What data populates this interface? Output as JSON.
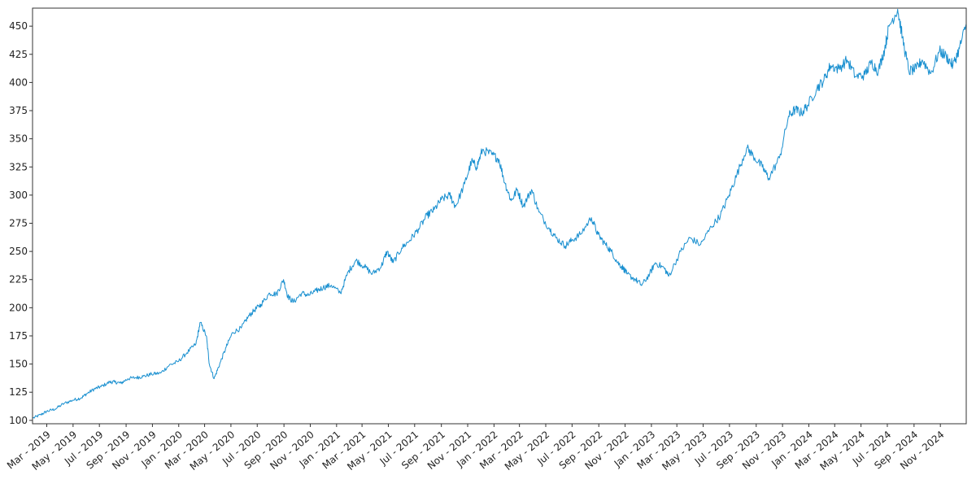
{
  "chart_data": {
    "type": "line",
    "title": "",
    "xlabel": "",
    "ylabel": "",
    "ylim": [
      97,
      466
    ],
    "xlim": [
      "2019-01-27",
      "2024-12-31"
    ],
    "grid": false,
    "legend": "none",
    "colors": {
      "line": "#1a90d0",
      "axis": "#333333",
      "background": "#ffffff"
    },
    "y_ticks": [
      100,
      125,
      150,
      175,
      200,
      225,
      250,
      275,
      300,
      325,
      350,
      375,
      400,
      425,
      450
    ],
    "x_ticks": [
      {
        "date": "2019-03-01",
        "label": "Mar - 2019"
      },
      {
        "date": "2019-05-01",
        "label": "May - 2019"
      },
      {
        "date": "2019-07-01",
        "label": "Jul - 2019"
      },
      {
        "date": "2019-09-01",
        "label": "Sep - 2019"
      },
      {
        "date": "2019-11-01",
        "label": "Nov - 2019"
      },
      {
        "date": "2020-01-01",
        "label": "Jan - 2020"
      },
      {
        "date": "2020-03-01",
        "label": "Mar - 2020"
      },
      {
        "date": "2020-05-01",
        "label": "May - 2020"
      },
      {
        "date": "2020-07-01",
        "label": "Jul - 2020"
      },
      {
        "date": "2020-09-01",
        "label": "Sep - 2020"
      },
      {
        "date": "2020-11-01",
        "label": "Nov - 2020"
      },
      {
        "date": "2021-01-01",
        "label": "Jan - 2021"
      },
      {
        "date": "2021-03-01",
        "label": "Mar - 2021"
      },
      {
        "date": "2021-05-01",
        "label": "May - 2021"
      },
      {
        "date": "2021-07-01",
        "label": "Jul - 2021"
      },
      {
        "date": "2021-09-01",
        "label": "Sep - 2021"
      },
      {
        "date": "2021-11-01",
        "label": "Nov - 2021"
      },
      {
        "date": "2022-01-01",
        "label": "Jan - 2022"
      },
      {
        "date": "2022-03-01",
        "label": "Mar - 2022"
      },
      {
        "date": "2022-05-01",
        "label": "May - 2022"
      },
      {
        "date": "2022-07-01",
        "label": "Jul - 2022"
      },
      {
        "date": "2022-09-01",
        "label": "Sep - 2022"
      },
      {
        "date": "2022-11-01",
        "label": "Nov - 2022"
      },
      {
        "date": "2023-01-01",
        "label": "Jan - 2023"
      },
      {
        "date": "2023-03-01",
        "label": "Mar - 2023"
      },
      {
        "date": "2023-05-01",
        "label": "May - 2023"
      },
      {
        "date": "2023-07-01",
        "label": "Jul - 2023"
      },
      {
        "date": "2023-09-01",
        "label": "Sep - 2023"
      },
      {
        "date": "2023-11-01",
        "label": "Nov - 2023"
      },
      {
        "date": "2024-01-01",
        "label": "Jan - 2024"
      },
      {
        "date": "2024-03-01",
        "label": "Mar - 2024"
      },
      {
        "date": "2024-05-01",
        "label": "May - 2024"
      },
      {
        "date": "2024-07-01",
        "label": "Jul - 2024"
      },
      {
        "date": "2024-09-01",
        "label": "Sep - 2024"
      },
      {
        "date": "2024-11-01",
        "label": "Nov - 2024"
      }
    ],
    "series": [
      {
        "x": [
          "2019-01-28",
          "2019-02-15",
          "2019-03-01",
          "2019-03-20",
          "2019-04-10",
          "2019-05-01",
          "2019-05-20",
          "2019-06-03",
          "2019-06-20",
          "2019-07-05",
          "2019-07-25",
          "2019-08-06",
          "2019-08-20",
          "2019-09-05",
          "2019-09-25",
          "2019-10-10",
          "2019-10-30",
          "2019-11-20",
          "2019-12-10",
          "2019-12-30",
          "2020-01-20",
          "2020-02-10",
          "2020-02-20",
          "2020-03-05",
          "2020-03-12",
          "2020-03-23",
          "2020-04-05",
          "2020-04-20",
          "2020-05-05",
          "2020-05-25",
          "2020-06-10",
          "2020-06-25",
          "2020-07-10",
          "2020-07-30",
          "2020-08-15",
          "2020-08-31",
          "2020-09-10",
          "2020-09-23",
          "2020-10-12",
          "2020-10-28",
          "2020-11-15",
          "2020-12-01",
          "2020-12-20",
          "2021-01-10",
          "2021-01-28",
          "2021-02-15",
          "2021-03-05",
          "2021-03-25",
          "2021-04-15",
          "2021-04-28",
          "2021-05-12",
          "2021-06-01",
          "2021-06-20",
          "2021-07-10",
          "2021-07-30",
          "2021-08-15",
          "2021-09-01",
          "2021-09-20",
          "2021-10-04",
          "2021-10-25",
          "2021-11-10",
          "2021-11-22",
          "2021-12-05",
          "2021-12-27",
          "2022-01-12",
          "2022-01-27",
          "2022-02-10",
          "2022-02-24",
          "2022-03-10",
          "2022-03-29",
          "2022-04-15",
          "2022-05-10",
          "2022-05-25",
          "2022-06-15",
          "2022-07-01",
          "2022-07-20",
          "2022-08-15",
          "2022-08-30",
          "2022-09-15",
          "2022-09-30",
          "2022-10-15",
          "2022-10-28",
          "2022-11-05",
          "2022-11-25",
          "2022-12-10",
          "2022-12-28",
          "2023-01-10",
          "2023-01-31",
          "2023-02-10",
          "2023-03-10",
          "2023-03-31",
          "2023-04-25",
          "2023-05-20",
          "2023-06-10",
          "2023-06-30",
          "2023-07-18",
          "2023-08-10",
          "2023-08-25",
          "2023-09-15",
          "2023-09-30",
          "2023-10-25",
          "2023-11-15",
          "2023-11-30",
          "2023-12-15",
          "2023-12-30",
          "2024-01-20",
          "2024-02-05",
          "2024-02-20",
          "2024-03-10",
          "2024-03-30",
          "2024-04-19",
          "2024-05-10",
          "2024-05-25",
          "2024-06-10",
          "2024-06-25",
          "2024-07-05",
          "2024-07-25",
          "2024-08-05",
          "2024-08-20",
          "2024-09-06",
          "2024-09-20",
          "2024-10-10",
          "2024-10-30",
          "2024-11-15",
          "2024-11-30",
          "2024-12-15",
          "2024-12-31"
        ],
        "values": [
          102,
          105,
          108,
          110,
          115,
          118,
          120,
          124,
          128,
          130,
          134,
          134,
          133,
          137,
          138,
          139,
          141,
          142,
          149,
          152,
          160,
          168,
          187,
          175,
          150,
          137,
          150,
          165,
          178,
          182,
          192,
          198,
          203,
          213,
          212,
          225,
          210,
          205,
          213,
          211,
          215,
          218,
          220,
          213,
          232,
          242,
          237,
          230,
          237,
          250,
          240,
          253,
          260,
          270,
          282,
          287,
          296,
          300,
          290,
          310,
          330,
          325,
          340,
          336,
          332,
          310,
          295,
          305,
          290,
          305,
          285,
          270,
          262,
          255,
          260,
          265,
          280,
          265,
          257,
          250,
          240,
          235,
          230,
          225,
          220,
          230,
          240,
          235,
          228,
          250,
          262,
          256,
          272,
          282,
          300,
          318,
          342,
          335,
          325,
          315,
          333,
          370,
          376,
          373,
          380,
          395,
          402,
          415,
          412,
          420,
          405,
          407,
          418,
          410,
          430,
          450,
          465,
          440,
          410,
          412,
          420,
          408,
          428,
          423,
          415,
          430,
          452
        ]
      }
    ]
  }
}
